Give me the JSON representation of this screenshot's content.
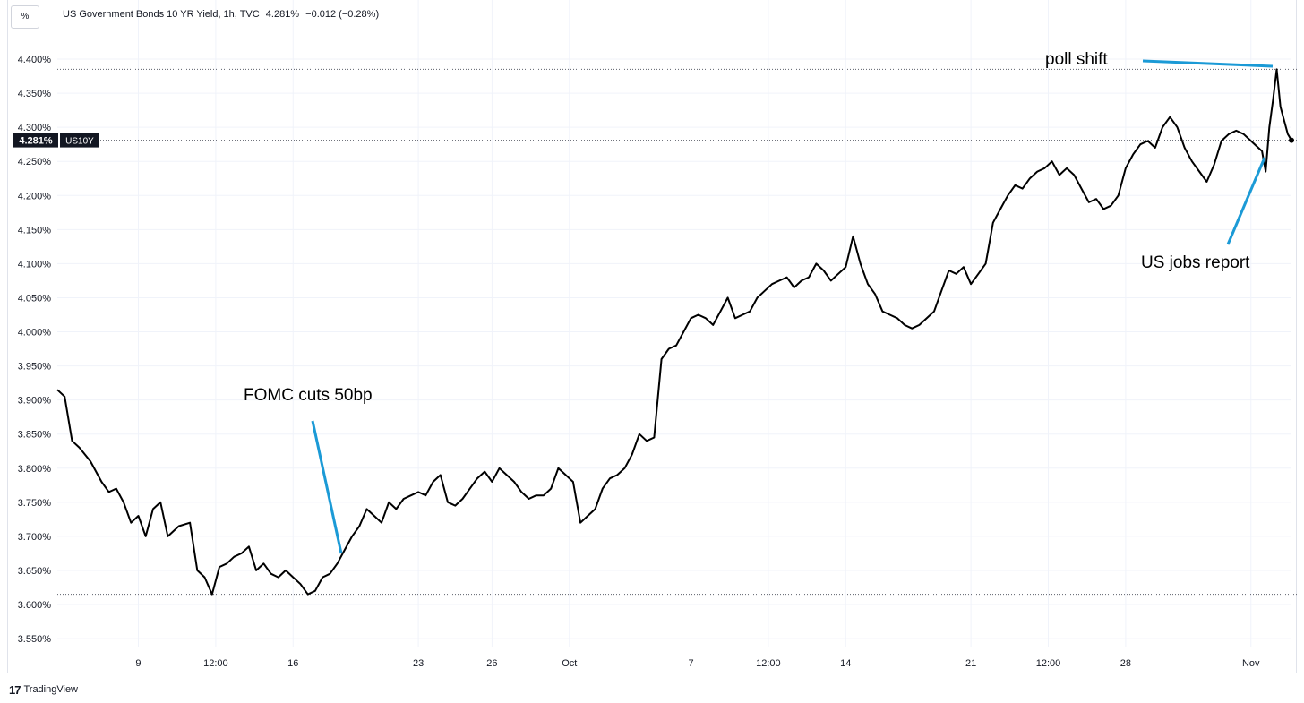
{
  "header": {
    "unit_button": "%",
    "title": "US Government Bonds 10 YR Yield, 1h, TVC",
    "last_value": "4.281%",
    "change": "−0.012 (−0.28%)"
  },
  "footer": {
    "brand": "TradingView",
    "logo": "17"
  },
  "colors": {
    "line": "#000000",
    "annotation": "#1b9ad6",
    "grid": "#f0f3fa",
    "axis_text": "#131722"
  },
  "chart_data": {
    "type": "line",
    "title": "US Government Bonds 10 YR Yield, 1h, TVC",
    "symbol": "US10Y",
    "last_label": "4.281%",
    "ylim": [
      3.52,
      4.45
    ],
    "y_ticks": [
      "4.400%",
      "4.350%",
      "4.300%",
      "4.250%",
      "4.200%",
      "4.150%",
      "4.100%",
      "4.050%",
      "4.000%",
      "3.950%",
      "3.900%",
      "3.850%",
      "3.800%",
      "3.750%",
      "3.700%",
      "3.650%",
      "3.600%",
      "3.550%"
    ],
    "x_ticks": [
      "9",
      "12:00",
      "16",
      "23",
      "26",
      "Oct",
      "7",
      "12:00",
      "14",
      "21",
      "12:00",
      "28",
      "Nov"
    ],
    "x_tick_index": [
      22,
      43,
      64,
      98,
      118,
      139,
      172,
      193,
      214,
      248,
      269,
      290,
      324
    ],
    "n_points": 336,
    "points": [
      [
        0,
        3.915
      ],
      [
        2,
        3.905
      ],
      [
        4,
        3.84
      ],
      [
        6,
        3.83
      ],
      [
        9,
        3.81
      ],
      [
        12,
        3.78
      ],
      [
        14,
        3.765
      ],
      [
        16,
        3.77
      ],
      [
        18,
        3.75
      ],
      [
        20,
        3.72
      ],
      [
        22,
        3.73
      ],
      [
        24,
        3.7
      ],
      [
        26,
        3.74
      ],
      [
        28,
        3.75
      ],
      [
        30,
        3.7
      ],
      [
        33,
        3.715
      ],
      [
        36,
        3.72
      ],
      [
        38,
        3.65
      ],
      [
        40,
        3.64
      ],
      [
        42,
        3.615
      ],
      [
        44,
        3.655
      ],
      [
        46,
        3.66
      ],
      [
        48,
        3.67
      ],
      [
        50,
        3.675
      ],
      [
        52,
        3.685
      ],
      [
        54,
        3.65
      ],
      [
        56,
        3.66
      ],
      [
        58,
        3.645
      ],
      [
        60,
        3.64
      ],
      [
        62,
        3.65
      ],
      [
        64,
        3.64
      ],
      [
        66,
        3.63
      ],
      [
        68,
        3.615
      ],
      [
        70,
        3.62
      ],
      [
        72,
        3.64
      ],
      [
        74,
        3.645
      ],
      [
        76,
        3.66
      ],
      [
        78,
        3.68
      ],
      [
        80,
        3.7
      ],
      [
        82,
        3.715
      ],
      [
        84,
        3.74
      ],
      [
        86,
        3.73
      ],
      [
        88,
        3.72
      ],
      [
        90,
        3.75
      ],
      [
        92,
        3.74
      ],
      [
        94,
        3.755
      ],
      [
        96,
        3.76
      ],
      [
        98,
        3.765
      ],
      [
        100,
        3.76
      ],
      [
        102,
        3.78
      ],
      [
        104,
        3.79
      ],
      [
        106,
        3.75
      ],
      [
        108,
        3.745
      ],
      [
        110,
        3.755
      ],
      [
        112,
        3.77
      ],
      [
        114,
        3.785
      ],
      [
        116,
        3.795
      ],
      [
        118,
        3.78
      ],
      [
        120,
        3.8
      ],
      [
        122,
        3.79
      ],
      [
        124,
        3.78
      ],
      [
        126,
        3.765
      ],
      [
        128,
        3.755
      ],
      [
        130,
        3.76
      ],
      [
        132,
        3.76
      ],
      [
        134,
        3.77
      ],
      [
        136,
        3.8
      ],
      [
        138,
        3.79
      ],
      [
        140,
        3.78
      ],
      [
        142,
        3.72
      ],
      [
        144,
        3.73
      ],
      [
        146,
        3.74
      ],
      [
        148,
        3.77
      ],
      [
        150,
        3.785
      ],
      [
        152,
        3.79
      ],
      [
        154,
        3.8
      ],
      [
        156,
        3.82
      ],
      [
        158,
        3.85
      ],
      [
        160,
        3.84
      ],
      [
        162,
        3.845
      ],
      [
        164,
        3.96
      ],
      [
        166,
        3.975
      ],
      [
        168,
        3.98
      ],
      [
        170,
        4.0
      ],
      [
        172,
        4.02
      ],
      [
        174,
        4.025
      ],
      [
        176,
        4.02
      ],
      [
        178,
        4.01
      ],
      [
        180,
        4.03
      ],
      [
        182,
        4.05
      ],
      [
        184,
        4.02
      ],
      [
        186,
        4.025
      ],
      [
        188,
        4.03
      ],
      [
        190,
        4.05
      ],
      [
        192,
        4.06
      ],
      [
        194,
        4.07
      ],
      [
        196,
        4.075
      ],
      [
        198,
        4.08
      ],
      [
        200,
        4.065
      ],
      [
        202,
        4.075
      ],
      [
        204,
        4.08
      ],
      [
        206,
        4.1
      ],
      [
        208,
        4.09
      ],
      [
        210,
        4.075
      ],
      [
        212,
        4.085
      ],
      [
        214,
        4.095
      ],
      [
        216,
        4.14
      ],
      [
        218,
        4.1
      ],
      [
        220,
        4.07
      ],
      [
        222,
        4.055
      ],
      [
        224,
        4.03
      ],
      [
        226,
        4.025
      ],
      [
        228,
        4.02
      ],
      [
        230,
        4.01
      ],
      [
        232,
        4.005
      ],
      [
        234,
        4.01
      ],
      [
        236,
        4.02
      ],
      [
        238,
        4.03
      ],
      [
        240,
        4.06
      ],
      [
        242,
        4.09
      ],
      [
        244,
        4.085
      ],
      [
        246,
        4.095
      ],
      [
        248,
        4.07
      ],
      [
        250,
        4.085
      ],
      [
        252,
        4.1
      ],
      [
        254,
        4.16
      ],
      [
        256,
        4.18
      ],
      [
        258,
        4.2
      ],
      [
        260,
        4.215
      ],
      [
        262,
        4.21
      ],
      [
        264,
        4.225
      ],
      [
        266,
        4.235
      ],
      [
        268,
        4.24
      ],
      [
        270,
        4.25
      ],
      [
        272,
        4.23
      ],
      [
        274,
        4.24
      ],
      [
        276,
        4.23
      ],
      [
        278,
        4.21
      ],
      [
        280,
        4.19
      ],
      [
        282,
        4.195
      ],
      [
        284,
        4.18
      ],
      [
        286,
        4.185
      ],
      [
        288,
        4.2
      ],
      [
        290,
        4.24
      ],
      [
        292,
        4.26
      ],
      [
        294,
        4.275
      ],
      [
        296,
        4.28
      ],
      [
        298,
        4.27
      ],
      [
        300,
        4.3
      ],
      [
        302,
        4.315
      ],
      [
        304,
        4.3
      ],
      [
        306,
        4.27
      ],
      [
        308,
        4.25
      ],
      [
        310,
        4.235
      ],
      [
        312,
        4.22
      ],
      [
        314,
        4.245
      ],
      [
        316,
        4.28
      ],
      [
        318,
        4.29
      ],
      [
        320,
        4.295
      ],
      [
        322,
        4.29
      ],
      [
        324,
        4.28
      ],
      [
        326,
        4.27
      ],
      [
        327,
        4.265
      ],
      [
        328,
        4.235
      ],
      [
        329,
        4.3
      ],
      [
        330,
        4.34
      ],
      [
        331,
        4.385
      ],
      [
        332,
        4.33
      ],
      [
        333,
        4.31
      ],
      [
        334,
        4.29
      ],
      [
        335,
        4.281
      ]
    ],
    "annotations": [
      {
        "text": "FOMC cuts 50bp"
      },
      {
        "text": "poll shift"
      },
      {
        "text": "US jobs report"
      }
    ]
  }
}
